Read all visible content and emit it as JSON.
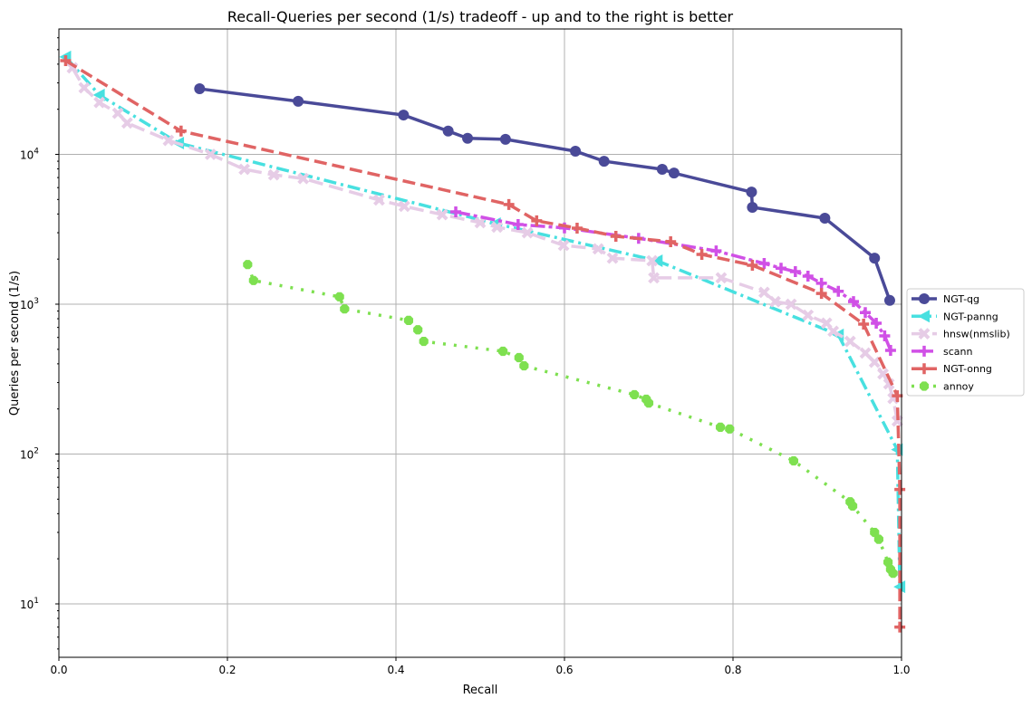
{
  "chart_data": {
    "type": "line",
    "title": "Recall-Queries per second (1/s) tradeoff - up and to the right is better",
    "xlabel": "Recall",
    "ylabel": "Queries per second (1/s)",
    "xlim": [
      0,
      1.0
    ],
    "ylim": [
      4.4,
      68000
    ],
    "yscale": "log",
    "grid": true,
    "legend_position": "right",
    "x_ticks": [
      "0.0",
      "0.2",
      "0.4",
      "0.6",
      "0.8",
      "1.0"
    ],
    "y_ticks": [
      {
        "base": "10",
        "exp": "1"
      },
      {
        "base": "10",
        "exp": "2"
      },
      {
        "base": "10",
        "exp": "3"
      },
      {
        "base": "10",
        "exp": "4"
      }
    ],
    "series": [
      {
        "name": "NGT-qg",
        "color": "#4a4a98",
        "marker": "circle",
        "dash": "",
        "x": [
          0.167,
          0.284,
          0.409,
          0.462,
          0.485,
          0.53,
          0.613,
          0.647,
          0.716,
          0.73,
          0.822,
          0.823,
          0.909,
          0.968,
          0.986
        ],
        "y": [
          27400,
          22600,
          18300,
          14300,
          12800,
          12600,
          10500,
          9000,
          7950,
          7500,
          5600,
          4430,
          3750,
          2030,
          1060
        ]
      },
      {
        "name": "NGT-panng",
        "color": "#48e0e0",
        "marker": "triangle-left",
        "dash": "14,5,3,5",
        "x": [
          0.008,
          0.048,
          0.142,
          0.518,
          0.71,
          0.925,
          0.995,
          0.998
        ],
        "y": [
          44700,
          24900,
          11900,
          3450,
          1950,
          624,
          107,
          13
        ]
      },
      {
        "name": "hnsw(nmslib)",
        "color": "#e6cce6",
        "marker": "x",
        "dash": "16,7",
        "x": [
          0.016,
          0.03,
          0.048,
          0.07,
          0.081,
          0.13,
          0.18,
          0.22,
          0.255,
          0.29,
          0.38,
          0.41,
          0.455,
          0.5,
          0.52,
          0.556,
          0.599,
          0.64,
          0.657,
          0.704,
          0.706,
          0.786,
          0.837,
          0.85,
          0.869,
          0.889,
          0.911,
          0.919,
          0.939,
          0.957,
          0.968,
          0.978,
          0.985,
          0.99,
          0.995
        ],
        "y": [
          37800,
          27800,
          22200,
          18800,
          16200,
          12400,
          10000,
          7950,
          7300,
          6900,
          4960,
          4500,
          3960,
          3500,
          3270,
          3000,
          2470,
          2340,
          2030,
          1950,
          1500,
          1500,
          1200,
          1040,
          1000,
          845,
          747,
          660,
          565,
          472,
          410,
          343,
          294,
          235,
          166
        ]
      },
      {
        "name": "scann",
        "color": "#d050e6",
        "marker": "plus",
        "dash": "16,4,4,4",
        "x": [
          0.471,
          0.545,
          0.6,
          0.688,
          0.78,
          0.837,
          0.857,
          0.874,
          0.889,
          0.905,
          0.925,
          0.943,
          0.957,
          0.97,
          0.98,
          0.987
        ],
        "y": [
          4130,
          3400,
          3230,
          2750,
          2270,
          1870,
          1740,
          1650,
          1540,
          1380,
          1220,
          1040,
          880,
          747,
          615,
          492
        ]
      },
      {
        "name": "NGT-onng",
        "color": "#e06464",
        "marker": "plus",
        "dash": "14,6",
        "x": [
          0.008,
          0.145,
          0.534,
          0.567,
          0.615,
          0.661,
          0.726,
          0.763,
          0.823,
          0.905,
          0.955,
          0.995,
          0.998,
          0.998
        ],
        "y": [
          42200,
          14300,
          4630,
          3600,
          3220,
          2840,
          2610,
          2150,
          1820,
          1180,
          736,
          245,
          58,
          7
        ]
      },
      {
        "name": "annoy",
        "color": "#7ee050",
        "marker": "octagon",
        "dash": "3,9",
        "x": [
          0.224,
          0.231,
          0.333,
          0.339,
          0.415,
          0.426,
          0.433,
          0.527,
          0.546,
          0.552,
          0.683,
          0.697,
          0.7,
          0.785,
          0.796,
          0.872,
          0.939,
          0.942,
          0.968,
          0.973,
          0.984,
          0.987,
          0.99
        ],
        "y": [
          1840,
          1440,
          1120,
          930,
          780,
          675,
          565,
          485,
          440,
          388,
          249,
          232,
          219,
          151,
          147,
          90,
          48,
          45,
          30,
          27,
          19,
          17,
          16
        ]
      }
    ]
  }
}
